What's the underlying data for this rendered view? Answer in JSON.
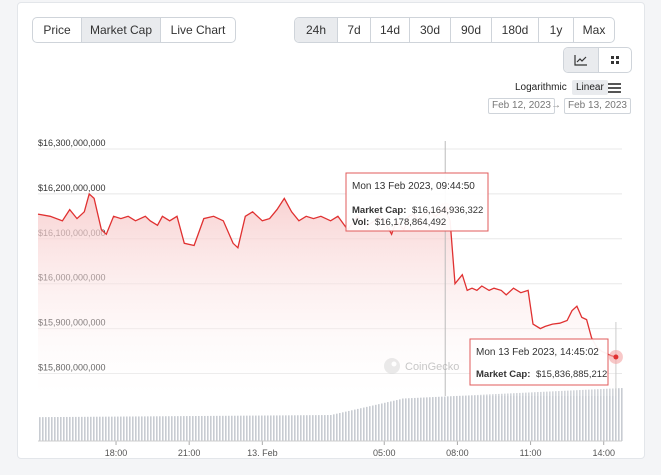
{
  "tabs": [
    {
      "label": "Price",
      "active": false
    },
    {
      "label": "Market Cap",
      "active": true
    },
    {
      "label": "Live Chart",
      "active": false
    }
  ],
  "ranges": [
    {
      "label": "24h",
      "active": true
    },
    {
      "label": "7d",
      "active": false
    },
    {
      "label": "14d",
      "active": false
    },
    {
      "label": "30d",
      "active": false
    },
    {
      "label": "90d",
      "active": false
    },
    {
      "label": "180d",
      "active": false
    },
    {
      "label": "1y",
      "active": false
    },
    {
      "label": "Max",
      "active": false
    }
  ],
  "chart_view_icons": [
    "line-chart-icon",
    "candlestick-chart-icon"
  ],
  "scale": {
    "logarithmic": "Logarithmic",
    "linear": "Linear",
    "selected": "Linear"
  },
  "date_range": {
    "from": "Feb 12, 2023",
    "arrow": "→",
    "to": "Feb 13, 2023"
  },
  "watermark": "CoinGecko",
  "tooltip_hover": {
    "title": "Mon 13 Feb 2023, 09:44:50",
    "mcap_label": "Market Cap:",
    "mcap_value": "$16,164,936,322",
    "vol_label": "Vol:",
    "vol_value": "$16,178,864,492"
  },
  "tooltip_last": {
    "title": "Mon 13 Feb 2023, 14:45:02",
    "mcap_label": "Market Cap:",
    "mcap_value": "$15,836,885,212"
  },
  "colors": {
    "line": "#e03131",
    "fill_top": "#f9d3d3",
    "grid": "#e8e8e8",
    "volume": "#c8ccd2",
    "tooltip_border": "#e05b5b"
  },
  "chart_data": {
    "type": "line",
    "y_tick_labels": [
      "$16,300,000,000",
      "$16,200,000,000",
      "$16,100,000,000",
      "$16,000,000,000",
      "$15,900,000,000",
      "$15,800,000,000"
    ],
    "y_ticks": [
      16300000000,
      16200000000,
      16100000000,
      16000000000,
      15900000000,
      15800000000
    ],
    "ylim": [
      15750000000,
      16340000000
    ],
    "x_tick_labels": [
      "18:00",
      "21:00",
      "13. Feb",
      "05:00",
      "08:00",
      "11:00",
      "14:00"
    ],
    "x_ticks": [
      18,
      21,
      24,
      29,
      32,
      35,
      38
    ],
    "xlim": [
      14.8,
      38.75
    ],
    "grid": true,
    "series": [
      {
        "points": [
          [
            14.8,
            16155000000
          ],
          [
            15.3,
            16150000000
          ],
          [
            15.8,
            16140000000
          ],
          [
            16.1,
            16165000000
          ],
          [
            16.4,
            16145000000
          ],
          [
            16.7,
            16160000000
          ],
          [
            16.9,
            16200000000
          ],
          [
            17.1,
            16190000000
          ],
          [
            17.4,
            16120000000
          ],
          [
            17.6,
            16110000000
          ],
          [
            17.9,
            16150000000
          ],
          [
            18.2,
            16145000000
          ],
          [
            18.5,
            16150000000
          ],
          [
            18.8,
            16140000000
          ],
          [
            19.2,
            16150000000
          ],
          [
            19.4,
            16140000000
          ],
          [
            19.7,
            16130000000
          ],
          [
            19.9,
            16150000000
          ],
          [
            20.2,
            16140000000
          ],
          [
            20.5,
            16150000000
          ],
          [
            20.8,
            16090000000
          ],
          [
            21.2,
            16085000000
          ],
          [
            21.6,
            16145000000
          ],
          [
            22.0,
            16150000000
          ],
          [
            22.4,
            16140000000
          ],
          [
            22.8,
            16090000000
          ],
          [
            23.0,
            16080000000
          ],
          [
            23.3,
            16150000000
          ],
          [
            23.6,
            16160000000
          ],
          [
            24.0,
            16140000000
          ],
          [
            24.3,
            16145000000
          ],
          [
            24.6,
            16165000000
          ],
          [
            24.9,
            16190000000
          ],
          [
            25.2,
            16160000000
          ],
          [
            25.5,
            16140000000
          ],
          [
            25.8,
            16150000000
          ],
          [
            26.1,
            16145000000
          ],
          [
            26.4,
            16150000000
          ],
          [
            26.8,
            16140000000
          ],
          [
            27.1,
            16150000000
          ],
          [
            27.5,
            16120000000
          ],
          [
            27.9,
            16150000000
          ],
          [
            28.3,
            16130000000
          ],
          [
            28.6,
            16140000000
          ],
          [
            28.8,
            16150000000
          ],
          [
            29.0,
            16140000000
          ],
          [
            29.3,
            16110000000
          ],
          [
            29.5,
            16140000000
          ],
          [
            29.8,
            16120000000
          ],
          [
            30.0,
            16150000000
          ],
          [
            30.2,
            16155000000
          ],
          [
            30.4,
            16140000000
          ],
          [
            30.6,
            16155000000
          ],
          [
            30.9,
            16162000000
          ],
          [
            31.1,
            16150000000
          ],
          [
            31.3,
            16160000000
          ],
          [
            31.5,
            16164900000
          ],
          [
            31.7,
            16140000000
          ],
          [
            31.9,
            16000000000
          ],
          [
            32.2,
            16020000000
          ],
          [
            32.4,
            15985000000
          ],
          [
            32.6,
            15990000000
          ],
          [
            32.8,
            15985000000
          ],
          [
            33.0,
            15995000000
          ],
          [
            33.3,
            15985000000
          ],
          [
            33.5,
            15990000000
          ],
          [
            33.8,
            15985000000
          ],
          [
            34.0,
            15975000000
          ],
          [
            34.3,
            15990000000
          ],
          [
            34.6,
            15980000000
          ],
          [
            34.9,
            15985000000
          ],
          [
            35.1,
            15910000000
          ],
          [
            35.4,
            15900000000
          ],
          [
            35.6,
            15905000000
          ],
          [
            35.9,
            15910000000
          ],
          [
            36.2,
            15912000000
          ],
          [
            36.5,
            15918000000
          ],
          [
            36.7,
            15940000000
          ],
          [
            36.9,
            15950000000
          ],
          [
            37.1,
            15925000000
          ],
          [
            37.3,
            15920000000
          ],
          [
            37.5,
            15880000000
          ],
          [
            37.7,
            15860000000
          ],
          [
            37.9,
            15850000000
          ],
          [
            38.1,
            15845000000
          ],
          [
            38.3,
            15840000000
          ],
          [
            38.5,
            15836885212
          ]
        ]
      }
    ],
    "volume_ratio_start": 0.45,
    "volume_ratio_end": 1.0,
    "hover_point": [
      31.5,
      16164936322
    ],
    "last_point": [
      38.5,
      15836885212
    ]
  }
}
